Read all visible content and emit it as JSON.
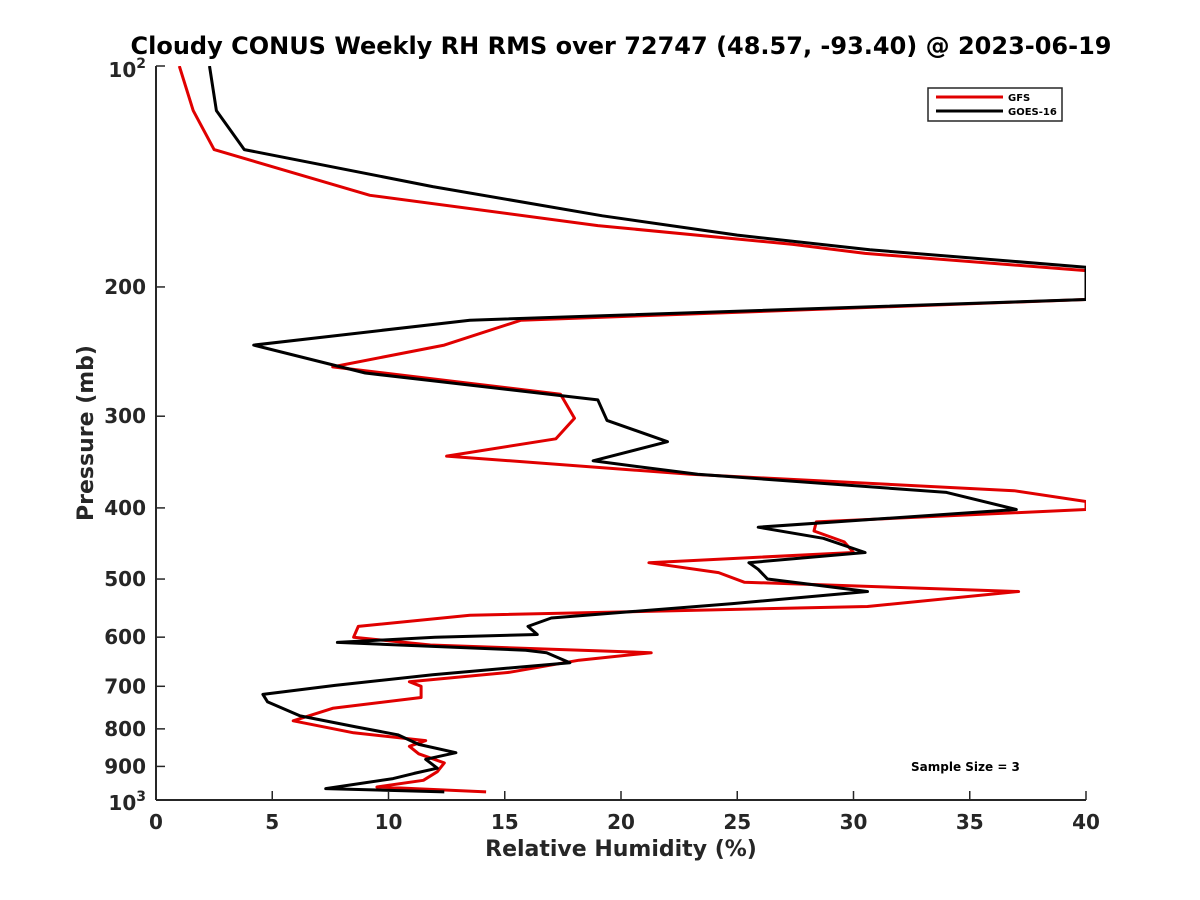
{
  "chart_data": {
    "type": "line",
    "title": "Cloudy CONUS Weekly RH RMS over 72747 (48.57, -93.40) @ 2023-06-19",
    "xlabel": "Relative Humidity (%)",
    "ylabel": "Pressure (mb)",
    "xlim": [
      0,
      40
    ],
    "ylim": [
      100,
      1000
    ],
    "y_scale": "log",
    "y_reversed": true,
    "x_ticks": [
      0,
      5,
      10,
      15,
      20,
      25,
      30,
      35,
      40
    ],
    "x_tick_labels": [
      "0",
      "5",
      "10",
      "15",
      "20",
      "25",
      "30",
      "35",
      "40"
    ],
    "y_ticks": [
      200,
      300,
      400,
      500,
      600,
      700,
      800,
      900
    ],
    "y_tick_labels": [
      "200",
      "300",
      "400",
      "500",
      "600",
      "700",
      "800",
      "900"
    ],
    "y_top_label": {
      "base": "10",
      "exp": "2"
    },
    "y_bottom_label": {
      "base": "10",
      "exp": "3"
    },
    "legend_position": "top-right",
    "annotation": "Sample Size = 3",
    "series": [
      {
        "name": "GFS",
        "color": "#e00000",
        "points": [
          [
            14.2,
            975
          ],
          [
            9.5,
            960
          ],
          [
            11.5,
            940
          ],
          [
            12.1,
            915
          ],
          [
            12.4,
            890
          ],
          [
            11.3,
            865
          ],
          [
            10.9,
            845
          ],
          [
            11.6,
            830
          ],
          [
            8.5,
            810
          ],
          [
            5.9,
            780
          ],
          [
            7.6,
            750
          ],
          [
            11.4,
            725
          ],
          [
            11.4,
            700
          ],
          [
            10.9,
            690
          ],
          [
            15.2,
            670
          ],
          [
            18.2,
            645
          ],
          [
            21.3,
            630
          ],
          [
            11.8,
            615
          ],
          [
            8.5,
            600
          ],
          [
            8.7,
            580
          ],
          [
            13.5,
            560
          ],
          [
            30.6,
            545
          ],
          [
            37.1,
            520
          ],
          [
            25.3,
            505
          ],
          [
            24.2,
            490
          ],
          [
            21.2,
            475
          ],
          [
            30.0,
            460
          ],
          [
            29.6,
            445
          ],
          [
            28.3,
            430
          ],
          [
            28.4,
            418
          ],
          [
            40.0,
            402
          ],
          [
            40.0,
            392
          ],
          [
            36.9,
            379
          ],
          [
            23.0,
            360
          ],
          [
            12.5,
            340
          ],
          [
            17.2,
            322
          ],
          [
            18.0,
            302
          ],
          [
            17.4,
            280
          ],
          [
            7.6,
            257
          ],
          [
            12.4,
            240
          ],
          [
            15.7,
            222
          ],
          [
            40.0,
            208
          ],
          [
            40.0,
            190
          ],
          [
            30.5,
            180
          ],
          [
            27.4,
            175
          ],
          [
            19.0,
            165
          ],
          [
            9.2,
            150
          ],
          [
            2.5,
            130
          ],
          [
            1.6,
            115
          ],
          [
            1.0,
            100
          ]
        ]
      },
      {
        "name": "GOES-16",
        "color": "#000000",
        "points": [
          [
            12.4,
            975
          ],
          [
            7.3,
            965
          ],
          [
            10.2,
            935
          ],
          [
            11.1,
            920
          ],
          [
            12.1,
            905
          ],
          [
            11.6,
            880
          ],
          [
            12.9,
            862
          ],
          [
            11.3,
            840
          ],
          [
            10.4,
            815
          ],
          [
            8.6,
            795
          ],
          [
            6.2,
            768
          ],
          [
            4.8,
            735
          ],
          [
            4.6,
            718
          ],
          [
            7.7,
            698
          ],
          [
            11.9,
            675
          ],
          [
            17.8,
            650
          ],
          [
            16.8,
            630
          ],
          [
            15.9,
            625
          ],
          [
            7.8,
            610
          ],
          [
            12.0,
            600
          ],
          [
            16.4,
            595
          ],
          [
            16.0,
            580
          ],
          [
            17.0,
            565
          ],
          [
            24.8,
            540
          ],
          [
            30.6,
            520
          ],
          [
            26.3,
            500
          ],
          [
            25.9,
            485
          ],
          [
            25.5,
            475
          ],
          [
            30.5,
            460
          ],
          [
            28.7,
            440
          ],
          [
            25.9,
            425
          ],
          [
            37.0,
            402
          ],
          [
            34.0,
            381
          ],
          [
            23.3,
            360
          ],
          [
            18.8,
            345
          ],
          [
            22.0,
            325
          ],
          [
            19.4,
            304
          ],
          [
            19.0,
            285
          ],
          [
            9.0,
            262
          ],
          [
            4.2,
            240
          ],
          [
            13.5,
            222
          ],
          [
            40.0,
            208
          ],
          [
            40.0,
            188
          ],
          [
            30.7,
            178
          ],
          [
            25.0,
            170
          ],
          [
            19.2,
            160
          ],
          [
            11.9,
            146
          ],
          [
            3.8,
            130
          ],
          [
            2.6,
            115
          ],
          [
            2.3,
            100
          ]
        ]
      }
    ]
  }
}
